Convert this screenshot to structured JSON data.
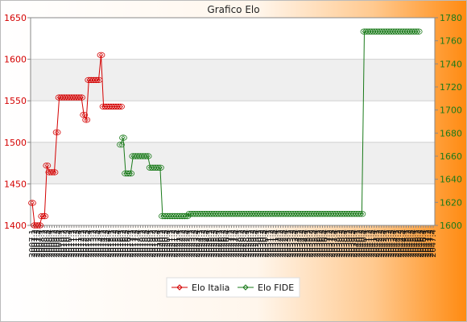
{
  "chart_data": {
    "type": "line",
    "title": "Grafico Elo",
    "background": {
      "from": "#ffffff",
      "to": "#ff8c1a"
    },
    "left_axis": {
      "color": "#d40000",
      "ylim": [
        1400,
        1650
      ],
      "ticks": [
        "1400",
        "1450",
        "1500",
        "1550",
        "1600",
        "1650"
      ]
    },
    "right_axis": {
      "color": "#1a7a1a",
      "ylim": [
        1600,
        1780
      ],
      "ticks": [
        "1600",
        "1620",
        "1640",
        "1660",
        "1680",
        "1700",
        "1720",
        "1740",
        "1760",
        "1780"
      ]
    },
    "grid": true,
    "legend_position": "bottom-center",
    "series": [
      {
        "name": "Elo Italia",
        "axis": "left",
        "color": "#d40000",
        "values": [
          1427,
          1400,
          1400,
          1400,
          1411,
          1411,
          1472,
          1464,
          1464,
          1464,
          1512,
          1554,
          1554,
          1554,
          1554,
          1554,
          1554,
          1554,
          1554,
          1554,
          1554,
          1533,
          1527,
          1575,
          1575,
          1575,
          1575,
          1575,
          1605,
          1543,
          1543,
          1543,
          1543,
          1543,
          1543,
          1543,
          1543
        ]
      },
      {
        "name": "Elo FIDE",
        "axis": "right",
        "color": "#1a7a1a",
        "x_start": 36,
        "values": [
          1670,
          1676,
          1645,
          1645,
          1645,
          1660,
          1660,
          1660,
          1660,
          1660,
          1660,
          1660,
          1650,
          1650,
          1650,
          1650,
          1650,
          1608,
          1608,
          1608,
          1608,
          1608,
          1608,
          1608,
          1608,
          1608,
          1608,
          1608,
          1610,
          1610,
          1610,
          1610,
          1610,
          1610,
          1610,
          1610,
          1610,
          1610,
          1610,
          1610,
          1610,
          1610,
          1610,
          1610,
          1610,
          1610,
          1610,
          1610,
          1610,
          1610,
          1610,
          1610,
          1610,
          1610,
          1610,
          1610,
          1610,
          1610,
          1610,
          1610,
          1610,
          1610,
          1610,
          1610,
          1610,
          1610,
          1610,
          1610,
          1610,
          1610,
          1610,
          1610,
          1610,
          1610,
          1610,
          1610,
          1610,
          1610,
          1610,
          1610,
          1610,
          1610,
          1610,
          1610,
          1610,
          1610,
          1610,
          1610,
          1610,
          1610,
          1610,
          1610,
          1610,
          1610,
          1610,
          1610,
          1610,
          1610,
          1610,
          1768,
          1768,
          1768,
          1768,
          1768,
          1768,
          1768,
          1768,
          1768,
          1768,
          1768,
          1768,
          1768,
          1768,
          1768,
          1768,
          1768,
          1768,
          1768,
          1768,
          1768,
          1768,
          1768
        ]
      }
    ],
    "x_tick_labels": [
      "2007.1",
      "2007.2",
      "2007.3",
      "2007.4",
      "2008.1",
      "2008.2",
      "2008.3",
      "2008.4",
      "2009.1",
      "2009.2",
      "2009.3",
      "2009.4",
      "2010.1",
      "2010.2",
      "2010.3",
      "2010.4",
      "2011.1",
      "2011.2",
      "2011.3",
      "2011.4",
      "2012.1",
      "2012.2",
      "2012.3",
      "2012.4",
      "2013.1",
      "2013.2",
      "2013.3",
      "2013.4",
      "2014.1",
      "2014.2",
      "2014.3",
      "2014.4",
      "2015.1",
      "2015.2",
      "2015.3",
      "2015.4",
      "2016.1",
      "2016.2",
      "2016.3",
      "2016.4",
      "2017.1",
      "2017.2",
      "2017.3",
      "2017.4",
      "2018.1",
      "2018.2",
      "2018.3",
      "2018.4",
      "2019.1",
      "2019.2",
      "2019.3",
      "2019.4",
      "2020.1",
      "2020.2",
      "2020.3",
      "2020.4",
      "2021.1",
      "2021.2",
      "2021.3",
      "2021.4",
      "2022.1",
      "2022.2",
      "2022.3",
      "2022.4",
      "2023.1",
      "2023.2",
      "2023.3",
      "2023.4",
      "2024.1",
      "2024.2",
      "2024.3",
      "2024.4",
      "2025.1",
      "2025.2",
      "2025.3",
      "2025.4",
      "2026.1",
      "2026.2",
      "2026.3",
      "2026.4",
      "2027.1",
      "2027.2",
      "2027.3",
      "2027.4",
      "2028.1",
      "2028.2",
      "2028.3",
      "2028.4",
      "2029.1",
      "2029.2",
      "2029.3",
      "2029.4",
      "2030.1",
      "2030.2",
      "2030.3",
      "2030.4",
      "2031.1",
      "2031.2",
      "2031.3",
      "2031.4",
      "2032.1",
      "2032.2",
      "2032.3",
      "2032.4",
      "2033.1",
      "2033.2",
      "2033.3",
      "2033.4",
      "2034.1",
      "2034.2",
      "2034.3",
      "2034.4",
      "2035.1",
      "2035.2",
      "2035.3",
      "2035.4",
      "2036.1",
      "2036.2",
      "2036.3",
      "2036.4",
      "2037.1",
      "2037.2",
      "2037.3",
      "2037.4",
      "2038.1",
      "2038.2",
      "2038.3",
      "2038.4",
      "2039.1",
      "2039.2",
      "2039.3",
      "2039.4",
      "2040.1",
      "2040.2",
      "2040.3",
      "2040.4",
      "2041.1",
      "2041.2",
      "2041.3",
      "2041.4",
      "2042.1",
      "2042.2",
      "2042.3",
      "2042.4",
      "2043.1",
      "2043.2",
      "2043.3",
      "2043.4",
      "2044.1",
      "2044.2",
      "2044.3",
      "2044.4",
      "2045.1",
      "2045.2",
      "2045.3",
      "2045.4",
      "2046.1",
      "2046.2",
      "2046.3",
      "2046.4",
      "2047.1",
      "2047.2",
      "2047.3",
      "2047.4"
    ]
  }
}
